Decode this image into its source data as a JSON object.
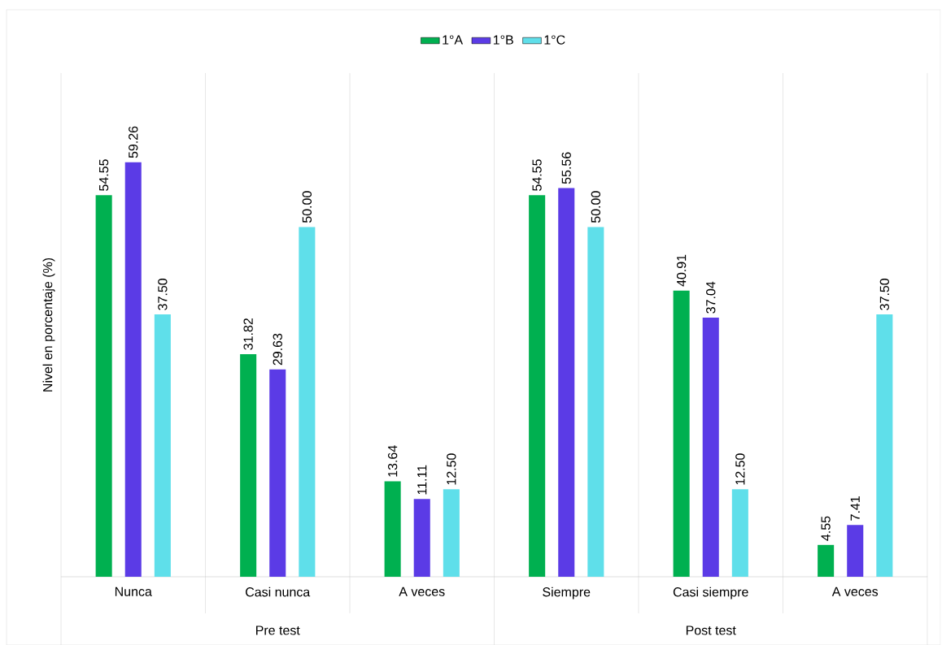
{
  "chart_data": {
    "type": "bar",
    "ylabel": "Nivel en porcentaje (%)",
    "categories": [
      "Nunca",
      "Casi nunca",
      "A veces",
      "Siempre",
      "Casi siempre",
      "A veces"
    ],
    "series": [
      {
        "name": "1°A",
        "color": "#00b050",
        "values": [
          54.55,
          31.82,
          13.64,
          54.55,
          40.91,
          4.55
        ],
        "value_labels": [
          "54.55",
          "31.82",
          "13.64",
          "54.55",
          "40.91",
          "4.55"
        ]
      },
      {
        "name": "1°B",
        "color": "#5b3be6",
        "values": [
          59.26,
          29.63,
          11.11,
          55.56,
          37.04,
          7.41
        ],
        "value_labels": [
          "59.26",
          "29.63",
          "11.11",
          "55.56",
          "37.04",
          "7.41"
        ]
      },
      {
        "name": "1°C",
        "color": "#5fdfea",
        "values": [
          37.5,
          50.0,
          12.5,
          50.0,
          12.5,
          37.5
        ],
        "value_labels": [
          "37.50",
          "50.00",
          "12.50",
          "50.00",
          "12.50",
          "37.50"
        ]
      }
    ],
    "annotations": [
      "Pre test",
      "Post test"
    ],
    "ylim": [
      0,
      72
    ],
    "grid": "x",
    "legend": "top"
  }
}
